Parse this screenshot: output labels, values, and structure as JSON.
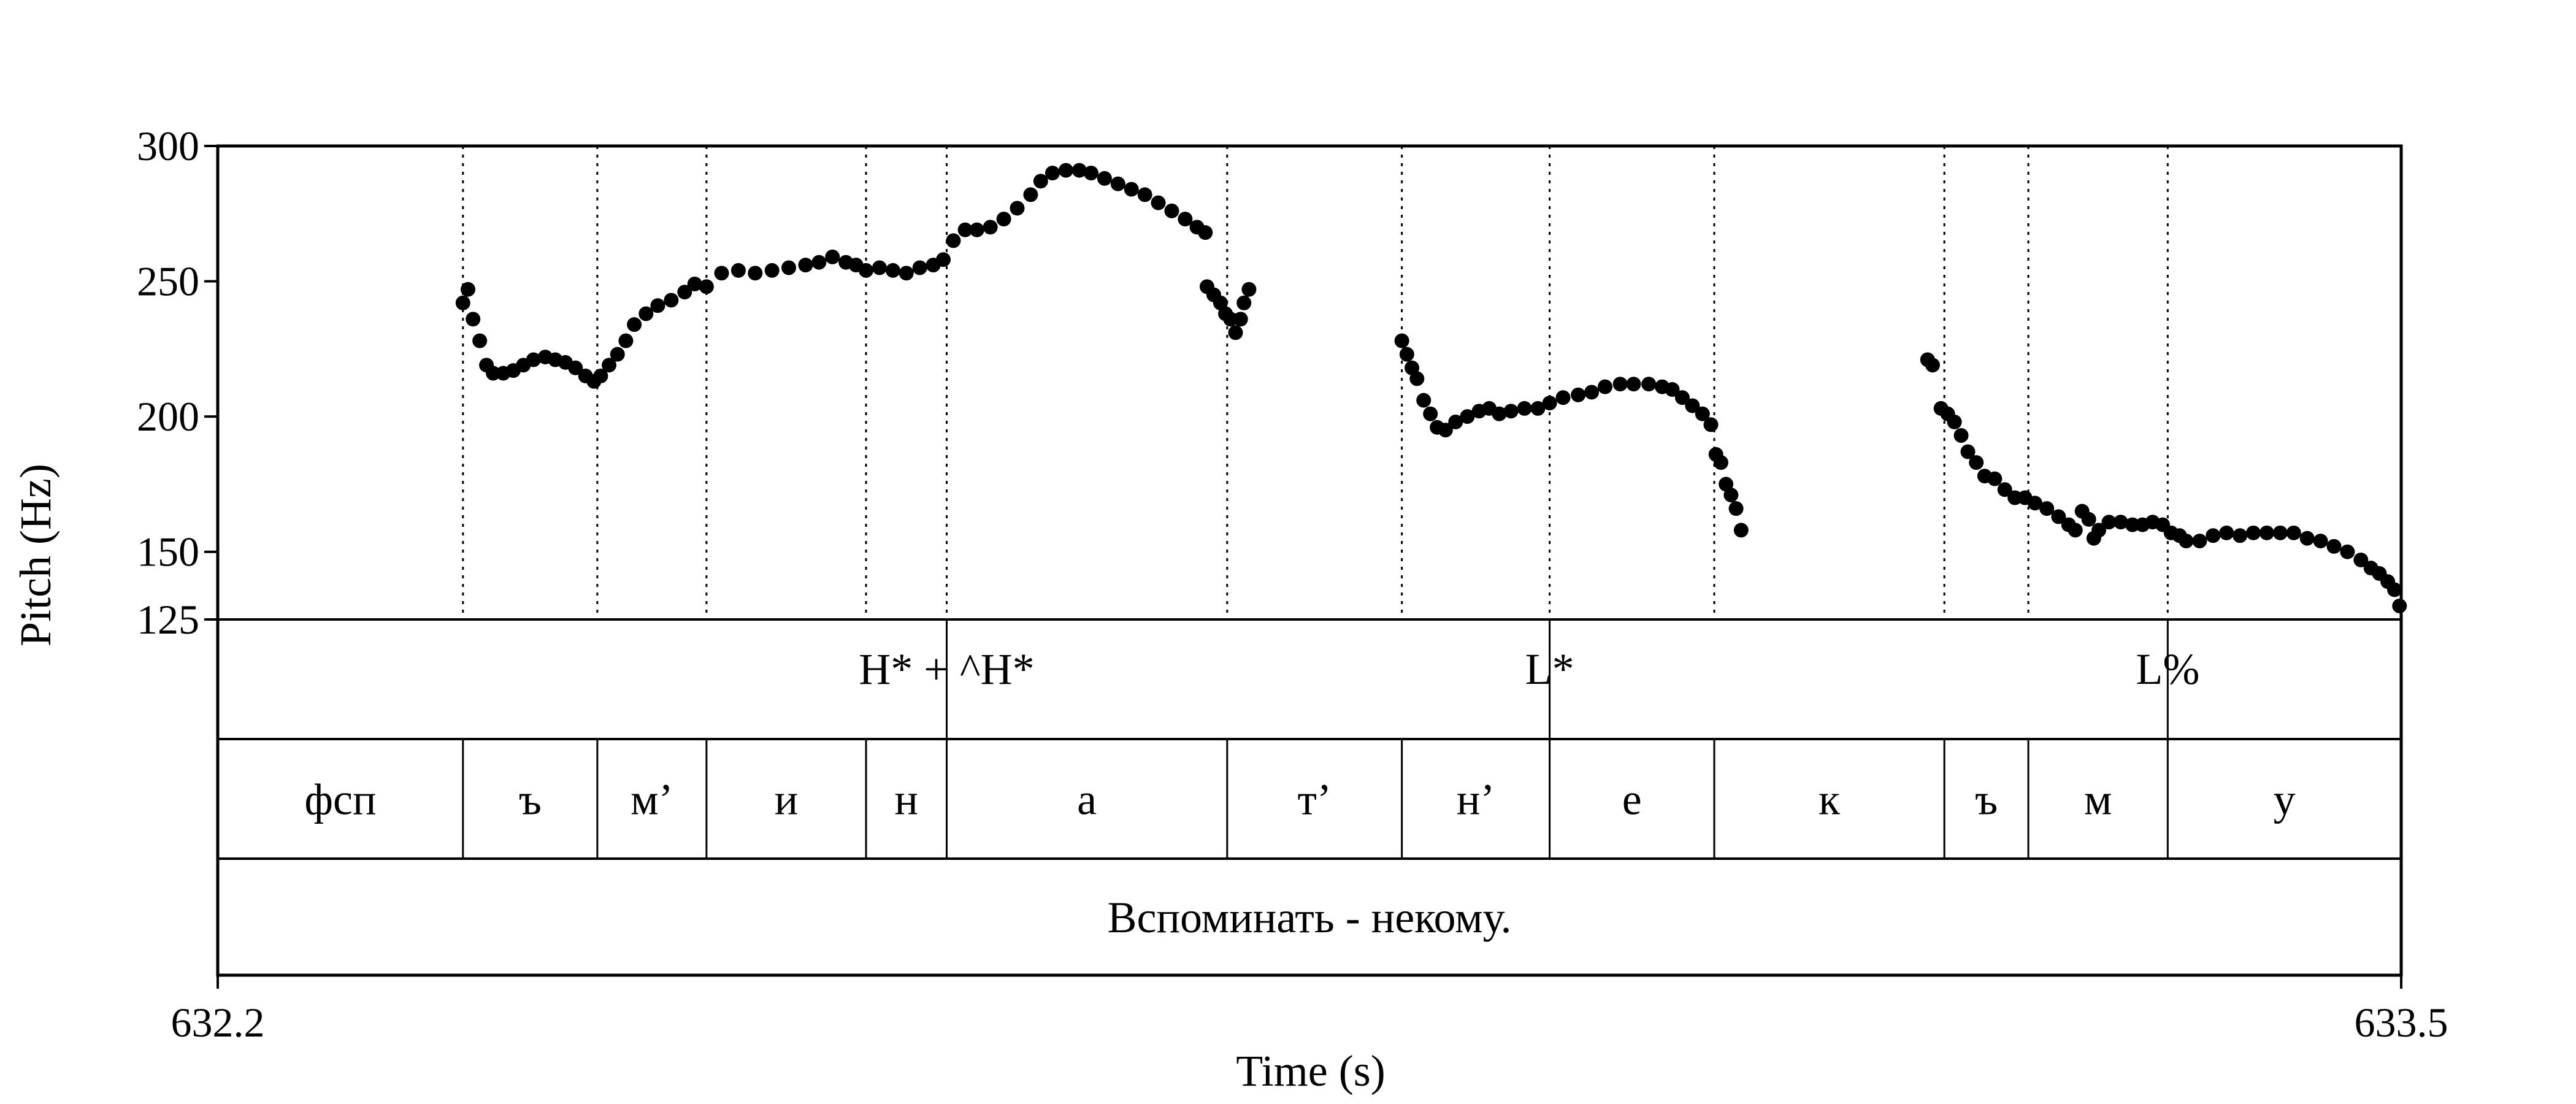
{
  "chart_data": {
    "type": "scatter",
    "title": "",
    "xlabel": "Time (s)",
    "ylabel": "Pitch (Hz)",
    "xlim": [
      632.2,
      633.5
    ],
    "ylim": [
      125,
      300
    ],
    "x_tick_labels": [
      {
        "x": 632.2,
        "label": "632.2"
      },
      {
        "x": 633.5,
        "label": "633.5"
      }
    ],
    "y_ticks": [
      {
        "y": 300,
        "label": "300"
      },
      {
        "y": 250,
        "label": "250"
      },
      {
        "y": 200,
        "label": "200"
      },
      {
        "y": 150,
        "label": "150"
      },
      {
        "y": 125,
        "label": "125"
      }
    ],
    "boundaries": [
      632.346,
      632.426,
      632.491,
      632.586,
      632.634,
      632.801,
      632.905,
      632.993,
      633.091,
      633.228,
      633.278,
      633.361
    ],
    "tones": [
      {
        "t": 632.634,
        "label": "H* + ^H*"
      },
      {
        "t": 632.993,
        "label": "L*"
      },
      {
        "t": 633.361,
        "label": "L%"
      }
    ],
    "segments": [
      {
        "start": 632.2,
        "end": 632.346,
        "label": "фсп"
      },
      {
        "start": 632.346,
        "end": 632.426,
        "label": "ъ"
      },
      {
        "start": 632.426,
        "end": 632.491,
        "label": "м’"
      },
      {
        "start": 632.491,
        "end": 632.586,
        "label": "и"
      },
      {
        "start": 632.586,
        "end": 632.634,
        "label": "н"
      },
      {
        "start": 632.634,
        "end": 632.801,
        "label": "а"
      },
      {
        "start": 632.801,
        "end": 632.905,
        "label": "т’"
      },
      {
        "start": 632.905,
        "end": 632.993,
        "label": "н’"
      },
      {
        "start": 632.993,
        "end": 633.091,
        "label": "е"
      },
      {
        "start": 633.091,
        "end": 633.228,
        "label": "к"
      },
      {
        "start": 633.228,
        "end": 633.278,
        "label": "ъ"
      },
      {
        "start": 633.278,
        "end": 633.361,
        "label": "м"
      },
      {
        "start": 633.361,
        "end": 633.5,
        "label": "у"
      }
    ],
    "words": [
      {
        "start": 632.2,
        "end": 633.5,
        "label": "Вспоминать - некому."
      }
    ],
    "pitch_contours": [
      [
        [
          632.346,
          242
        ],
        [
          632.349,
          247
        ],
        [
          632.352,
          236
        ],
        [
          632.356,
          228
        ],
        [
          632.36,
          219
        ],
        [
          632.364,
          216
        ],
        [
          632.37,
          216
        ],
        [
          632.376,
          217
        ],
        [
          632.382,
          219
        ],
        [
          632.388,
          221
        ],
        [
          632.395,
          222
        ],
        [
          632.401,
          221
        ],
        [
          632.407,
          220
        ],
        [
          632.413,
          218
        ],
        [
          632.419,
          215
        ],
        [
          632.424,
          213
        ],
        [
          632.428,
          215
        ],
        [
          632.433,
          219
        ],
        [
          632.438,
          223
        ],
        [
          632.443,
          228
        ],
        [
          632.448,
          234
        ],
        [
          632.455,
          238
        ],
        [
          632.462,
          241
        ],
        [
          632.47,
          243
        ],
        [
          632.478,
          246
        ],
        [
          632.484,
          249
        ],
        [
          632.491,
          248
        ],
        [
          632.5,
          253
        ],
        [
          632.51,
          254
        ],
        [
          632.52,
          253
        ],
        [
          632.53,
          254
        ],
        [
          632.54,
          255
        ],
        [
          632.55,
          256
        ],
        [
          632.558,
          257
        ],
        [
          632.566,
          259
        ],
        [
          632.574,
          257
        ],
        [
          632.58,
          256
        ],
        [
          632.586,
          254
        ],
        [
          632.594,
          255
        ],
        [
          632.602,
          254
        ],
        [
          632.61,
          253
        ],
        [
          632.618,
          255
        ],
        [
          632.626,
          256
        ],
        [
          632.632,
          258
        ],
        [
          632.638,
          265
        ],
        [
          632.645,
          269
        ],
        [
          632.652,
          269
        ],
        [
          632.66,
          270
        ],
        [
          632.668,
          273
        ],
        [
          632.676,
          277
        ],
        [
          632.684,
          282
        ],
        [
          632.69,
          287
        ],
        [
          632.697,
          290
        ],
        [
          632.705,
          291
        ],
        [
          632.713,
          291
        ],
        [
          632.72,
          290
        ],
        [
          632.728,
          288
        ],
        [
          632.736,
          286
        ],
        [
          632.744,
          284
        ],
        [
          632.752,
          282
        ],
        [
          632.76,
          279
        ],
        [
          632.768,
          276
        ],
        [
          632.776,
          273
        ],
        [
          632.783,
          270
        ],
        [
          632.788,
          268
        ]
      ],
      [
        [
          632.789,
          248
        ],
        [
          632.793,
          245
        ],
        [
          632.797,
          242
        ],
        [
          632.8,
          238
        ],
        [
          632.803,
          236
        ],
        [
          632.806,
          231
        ],
        [
          632.809,
          236
        ],
        [
          632.811,
          242
        ],
        [
          632.814,
          247
        ]
      ],
      [
        [
          632.905,
          228
        ],
        [
          632.908,
          223
        ],
        [
          632.911,
          218
        ],
        [
          632.914,
          214
        ],
        [
          632.918,
          206
        ],
        [
          632.922,
          201
        ],
        [
          632.926,
          196
        ],
        [
          632.931,
          195
        ],
        [
          632.937,
          198
        ],
        [
          632.944,
          200
        ],
        [
          632.951,
          202
        ],
        [
          632.957,
          203
        ],
        [
          632.963,
          201
        ],
        [
          632.97,
          202
        ],
        [
          632.978,
          203
        ],
        [
          632.986,
          203
        ],
        [
          632.993,
          205
        ],
        [
          633.001,
          207
        ],
        [
          633.01,
          208
        ],
        [
          633.018,
          209
        ],
        [
          633.026,
          211
        ],
        [
          633.035,
          212
        ],
        [
          633.043,
          212
        ],
        [
          633.052,
          212
        ],
        [
          633.06,
          211
        ],
        [
          633.066,
          210
        ],
        [
          633.072,
          207
        ],
        [
          633.078,
          204
        ],
        [
          633.084,
          201
        ],
        [
          633.089,
          197
        ],
        [
          633.092,
          186
        ],
        [
          633.095,
          183
        ],
        [
          633.098,
          175
        ],
        [
          633.101,
          171
        ],
        [
          633.104,
          166
        ],
        [
          633.107,
          158
        ]
      ],
      [
        [
          633.218,
          221
        ],
        [
          633.221,
          219
        ],
        [
          633.226,
          203
        ],
        [
          633.23,
          201
        ],
        [
          633.234,
          198
        ],
        [
          633.238,
          193
        ],
        [
          633.242,
          187
        ],
        [
          633.247,
          183
        ],
        [
          633.252,
          178
        ],
        [
          633.258,
          177
        ],
        [
          633.264,
          173
        ],
        [
          633.27,
          170
        ],
        [
          633.276,
          170
        ],
        [
          633.282,
          168
        ],
        [
          633.289,
          166
        ],
        [
          633.296,
          163
        ],
        [
          633.302,
          160
        ],
        [
          633.306,
          158
        ],
        [
          633.31,
          165
        ],
        [
          633.314,
          162
        ],
        [
          633.317,
          155
        ],
        [
          633.32,
          158
        ],
        [
          633.326,
          161
        ],
        [
          633.333,
          161
        ],
        [
          633.34,
          160
        ],
        [
          633.346,
          160
        ],
        [
          633.352,
          161
        ],
        [
          633.358,
          160
        ],
        [
          633.363,
          157
        ],
        [
          633.368,
          156
        ],
        [
          633.372,
          154
        ],
        [
          633.38,
          154
        ],
        [
          633.388,
          156
        ],
        [
          633.396,
          157
        ],
        [
          633.404,
          156
        ],
        [
          633.412,
          157
        ],
        [
          633.42,
          157
        ],
        [
          633.428,
          157
        ],
        [
          633.436,
          157
        ],
        [
          633.444,
          155
        ],
        [
          633.452,
          154
        ],
        [
          633.46,
          152
        ],
        [
          633.468,
          150
        ],
        [
          633.476,
          147
        ],
        [
          633.482,
          144
        ],
        [
          633.487,
          142
        ],
        [
          633.492,
          139
        ],
        [
          633.496,
          136
        ],
        [
          633.499,
          130
        ]
      ]
    ]
  }
}
